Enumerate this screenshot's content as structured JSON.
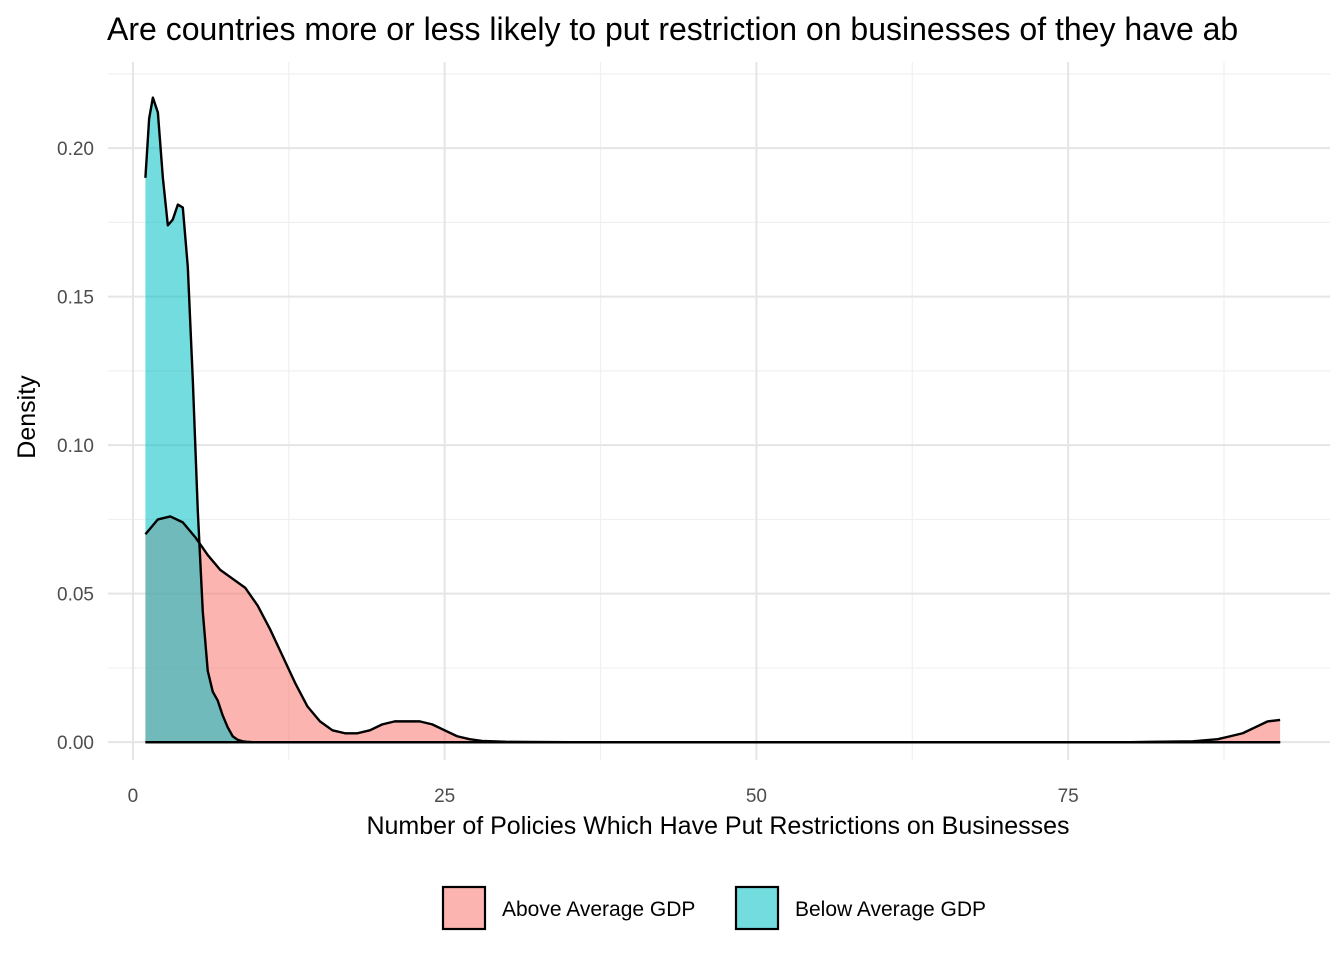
{
  "chart_data": {
    "type": "area",
    "title": "Are countries more or less likely to put restriction on businesses of they have ab",
    "xlabel": "Number of Policies Which Have Put Restrictions on Businesses",
    "ylabel": "Density",
    "xlim": [
      -2,
      96
    ],
    "ylim": [
      -0.006,
      0.229
    ],
    "x_ticks": [
      0,
      25,
      50,
      75
    ],
    "x_tick_labels": [
      "0",
      "25",
      "50",
      "75"
    ],
    "y_ticks": [
      0,
      0.05,
      0.1,
      0.15,
      0.2
    ],
    "y_tick_labels": [
      "0.00",
      "0.05",
      "0.10",
      "0.15",
      "0.20"
    ],
    "grid": true,
    "legend_position": "bottom",
    "series": [
      {
        "name": "Above Average GDP",
        "color": "#F8766D",
        "x": [
          1,
          2,
          3,
          4,
          5,
          6,
          7,
          8,
          9,
          10,
          11,
          12,
          13,
          14,
          15,
          16,
          17,
          18,
          19,
          20,
          21,
          22,
          23,
          24,
          25,
          26,
          27,
          28,
          30,
          35,
          40,
          50,
          60,
          70,
          80,
          85,
          87,
          88,
          89,
          90,
          91,
          92
        ],
        "values": [
          0.07,
          0.075,
          0.076,
          0.074,
          0.069,
          0.063,
          0.058,
          0.055,
          0.052,
          0.046,
          0.038,
          0.029,
          0.02,
          0.012,
          0.007,
          0.004,
          0.003,
          0.003,
          0.004,
          0.006,
          0.007,
          0.007,
          0.007,
          0.006,
          0.004,
          0.002,
          0.001,
          0.0004,
          0.0001,
          0.0,
          0.0,
          0.0,
          0.0,
          0.0,
          0.0,
          0.0003,
          0.001,
          0.002,
          0.003,
          0.005,
          0.007,
          0.0075
        ]
      },
      {
        "name": "Below Average GDP",
        "color": "#00BFC4",
        "x": [
          1,
          1.3,
          1.6,
          2,
          2.4,
          2.8,
          3.2,
          3.6,
          4,
          4.4,
          4.8,
          5.2,
          5.6,
          6,
          6.4,
          6.8,
          7.2,
          7.6,
          8,
          8.4,
          8.8,
          9.2,
          9.6,
          10,
          12,
          15,
          20,
          30,
          40,
          50,
          60,
          70,
          80,
          92
        ],
        "values": [
          0.19,
          0.21,
          0.217,
          0.212,
          0.19,
          0.174,
          0.176,
          0.181,
          0.18,
          0.16,
          0.122,
          0.078,
          0.044,
          0.024,
          0.017,
          0.014,
          0.009,
          0.005,
          0.002,
          0.0008,
          0.0003,
          0.0001,
          0.0,
          0.0,
          0.0,
          0.0,
          0.0,
          0.0,
          0.0,
          0.0,
          0.0,
          0.0,
          0.0,
          0.0
        ]
      }
    ]
  }
}
